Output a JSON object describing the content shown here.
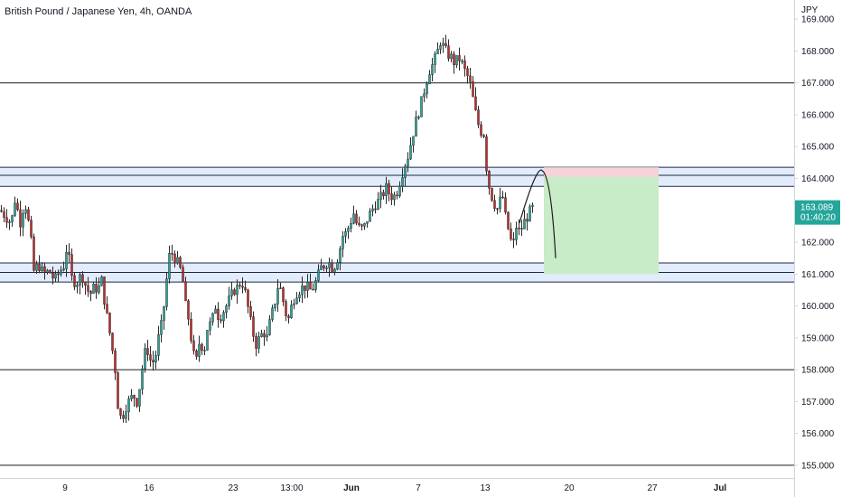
{
  "header": {
    "symbol_title": "British Pound / Japanese Yen, 4h, OANDA"
  },
  "axis": {
    "currency": "JPY"
  },
  "current_price": {
    "value": "163.089",
    "countdown": "01:40:20",
    "color": "#26a69a"
  },
  "colors": {
    "up": "#26a69a",
    "down": "#c62828",
    "zone_fill": "#e3ecfb",
    "zone_stroke": "#1c2a4a",
    "stop_fill": "#f6d2d9",
    "target_fill": "#c8ebc8"
  },
  "chart_data": {
    "type": "candlestick",
    "title": "British Pound / Japanese Yen, 4h, OANDA",
    "y_unit": "JPY",
    "ylim": [
      154.6,
      169.6
    ],
    "y_ticks": [
      "169.000",
      "168.000",
      "167.000",
      "166.000",
      "165.000",
      "164.000",
      "163.000",
      "162.000",
      "161.000",
      "160.000",
      "159.000",
      "158.000",
      "157.000",
      "156.000",
      "155.000"
    ],
    "x_ticks": [
      {
        "label": "9",
        "bold": false
      },
      {
        "label": "16",
        "bold": false
      },
      {
        "label": "23",
        "bold": false
      },
      {
        "label": "13:00",
        "bold": false
      },
      {
        "label": "Jun",
        "bold": true
      },
      {
        "label": "7",
        "bold": false
      },
      {
        "label": "13",
        "bold": false
      },
      {
        "label": "20",
        "bold": false
      },
      {
        "label": "27",
        "bold": false
      },
      {
        "label": "Jul",
        "bold": true
      }
    ],
    "horizontal_lines": [
      167.0,
      158.0,
      155.0
    ],
    "zones": [
      {
        "top": 164.35,
        "mid": 164.1,
        "bottom": 163.75
      },
      {
        "top": 161.35,
        "mid": 161.05,
        "bottom": 160.75
      }
    ],
    "price_path": [
      [
        0,
        163.0
      ],
      [
        6,
        162.8
      ],
      [
        12,
        162.6
      ],
      [
        17,
        163.5
      ],
      [
        21,
        162.5
      ],
      [
        27,
        163.3
      ],
      [
        33,
        162.3
      ],
      [
        37,
        161.1
      ],
      [
        42,
        161.3
      ],
      [
        48,
        161.0
      ],
      [
        54,
        161.1
      ],
      [
        60,
        160.8
      ],
      [
        66,
        161.1
      ],
      [
        71,
        161.3
      ],
      [
        74,
        162.0
      ],
      [
        78,
        160.9
      ],
      [
        84,
        160.7
      ],
      [
        90,
        161.0
      ],
      [
        96,
        160.5
      ],
      [
        100,
        160.4
      ],
      [
        104,
        160.6
      ],
      [
        108,
        160.5
      ],
      [
        112,
        160.8
      ],
      [
        116,
        160.0
      ],
      [
        119,
        159.5
      ],
      [
        123,
        158.8
      ],
      [
        127,
        158.0
      ],
      [
        130,
        156.9
      ],
      [
        134,
        156.4
      ],
      [
        138,
        156.8
      ],
      [
        142,
        157.0
      ],
      [
        147,
        157.2
      ],
      [
        151,
        157.0
      ],
      [
        155,
        157.6
      ],
      [
        159,
        158.5
      ],
      [
        163,
        158.6
      ],
      [
        167,
        158.2
      ],
      [
        171,
        158.3
      ],
      [
        175,
        159.0
      ],
      [
        179,
        159.5
      ],
      [
        183,
        160.5
      ],
      [
        186,
        161.5
      ],
      [
        189,
        161.7
      ],
      [
        193,
        161.5
      ],
      [
        197,
        161.3
      ],
      [
        201,
        161.0
      ],
      [
        205,
        160.0
      ],
      [
        209,
        159.5
      ],
      [
        213,
        158.5
      ],
      [
        217,
        158.3
      ],
      [
        221,
        159.0
      ],
      [
        225,
        158.5
      ],
      [
        229,
        159.3
      ],
      [
        234,
        159.5
      ],
      [
        238,
        160.0
      ],
      [
        242,
        159.6
      ],
      [
        246,
        159.8
      ],
      [
        250,
        160.0
      ],
      [
        255,
        160.3
      ],
      [
        259,
        160.5
      ],
      [
        263,
        160.6
      ],
      [
        267,
        160.8
      ],
      [
        271,
        160.4
      ],
      [
        275,
        159.8
      ],
      [
        279,
        159.2
      ],
      [
        283,
        158.8
      ],
      [
        287,
        159.0
      ],
      [
        291,
        159.2
      ],
      [
        295,
        159.0
      ],
      [
        299,
        159.6
      ],
      [
        303,
        160.0
      ],
      [
        307,
        160.6
      ],
      [
        311,
        160.5
      ],
      [
        315,
        159.8
      ],
      [
        319,
        159.6
      ],
      [
        323,
        160.1
      ],
      [
        327,
        160.4
      ],
      [
        331,
        160.5
      ],
      [
        335,
        160.6
      ],
      [
        339,
        160.6
      ],
      [
        343,
        160.5
      ],
      [
        347,
        160.6
      ],
      [
        351,
        160.9
      ],
      [
        355,
        161.2
      ],
      [
        359,
        161.3
      ],
      [
        363,
        161.4
      ],
      [
        367,
        161.2
      ],
      [
        371,
        161.3
      ],
      [
        375,
        161.7
      ],
      [
        379,
        162.2
      ],
      [
        383,
        162.3
      ],
      [
        387,
        162.6
      ],
      [
        391,
        162.9
      ],
      [
        395,
        162.5
      ],
      [
        399,
        162.4
      ],
      [
        403,
        162.5
      ],
      [
        407,
        162.8
      ],
      [
        411,
        163.0
      ],
      [
        415,
        163.2
      ],
      [
        419,
        163.3
      ],
      [
        423,
        163.5
      ],
      [
        427,
        163.7
      ],
      [
        431,
        163.5
      ],
      [
        435,
        163.4
      ],
      [
        439,
        163.6
      ],
      [
        443,
        164.0
      ],
      [
        447,
        164.4
      ],
      [
        451,
        164.7
      ],
      [
        455,
        165.2
      ],
      [
        459,
        165.7
      ],
      [
        463,
        166.1
      ],
      [
        467,
        166.5
      ],
      [
        471,
        167.0
      ],
      [
        475,
        167.4
      ],
      [
        479,
        167.6
      ],
      [
        483,
        167.9
      ],
      [
        487,
        168.3
      ],
      [
        491,
        168.1
      ],
      [
        495,
        167.9
      ],
      [
        499,
        167.8
      ],
      [
        503,
        167.6
      ],
      [
        507,
        167.8
      ],
      [
        511,
        167.6
      ],
      [
        515,
        167.3
      ],
      [
        519,
        167.1
      ],
      [
        523,
        166.5
      ],
      [
        527,
        165.9
      ],
      [
        531,
        165.5
      ],
      [
        535,
        165.4
      ],
      [
        539,
        164.0
      ],
      [
        543,
        163.5
      ],
      [
        547,
        163.2
      ],
      [
        551,
        163.0
      ],
      [
        555,
        163.6
      ],
      [
        559,
        162.8
      ],
      [
        563,
        162.3
      ],
      [
        567,
        161.8
      ],
      [
        571,
        162.5
      ],
      [
        575,
        162.3
      ],
      [
        579,
        162.6
      ],
      [
        583,
        162.8
      ],
      [
        587,
        163.0
      ],
      [
        590,
        163.089
      ]
    ],
    "projection": {
      "x_start": 575,
      "y_start": 162.6,
      "x_peak": 600,
      "y_peak": 164.25,
      "x_end": 615,
      "y_end": 161.5
    },
    "position": {
      "x_start": 602,
      "x_end": 729,
      "entry": 164.05,
      "stop": 164.35,
      "target": 161.0
    }
  }
}
